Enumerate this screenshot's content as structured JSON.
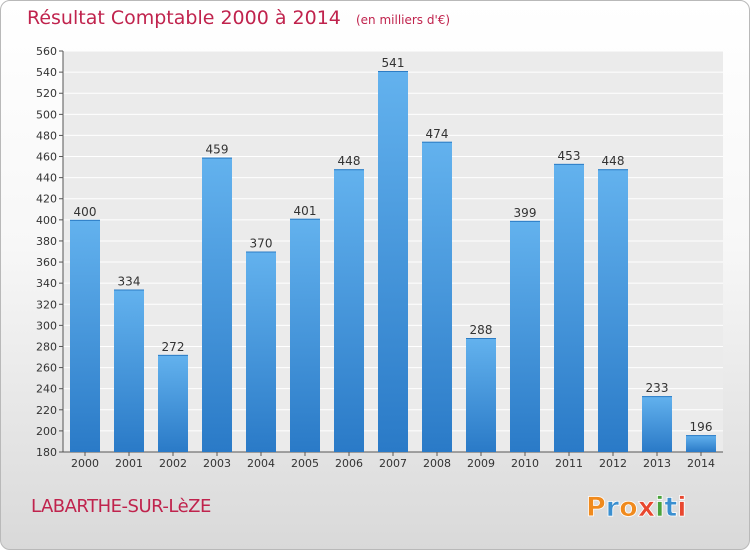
{
  "header": {
    "title": "Résultat Comptable 2000 à 2014",
    "subtitle": "(en milliers d'€)"
  },
  "footer": {
    "commune": "LABARTHE-SUR-LèZE",
    "logo_text": "Proxiti"
  },
  "colors": {
    "title": "#c0234d",
    "bar_top": "#63b2ee",
    "bar_bottom": "#2a7ac7",
    "plot_background": "#ebebeb",
    "grid": "#ffffff",
    "logo_letters": [
      "#f08a1d",
      "#3a8fd0",
      "#f08a1d",
      "#e8472f",
      "#4aa33c",
      "#3a8fd0",
      "#e8472f"
    ]
  },
  "chart_data": {
    "type": "bar",
    "categories": [
      "2000",
      "2001",
      "2002",
      "2003",
      "2004",
      "2005",
      "2006",
      "2007",
      "2008",
      "2009",
      "2010",
      "2011",
      "2012",
      "2013",
      "2014"
    ],
    "values": [
      400,
      334,
      272,
      459,
      370,
      401,
      448,
      541,
      474,
      288,
      399,
      453,
      448,
      233,
      196
    ],
    "data_labels": [
      "400",
      "334",
      "272",
      "459",
      "370",
      "401",
      "448",
      "541",
      "474",
      "288",
      "399",
      "453",
      "448",
      "233",
      "196"
    ],
    "ylim": [
      180,
      560
    ],
    "yticks": [
      "180",
      "200",
      "220",
      "240",
      "260",
      "280",
      "300",
      "320",
      "340",
      "360",
      "380",
      "400",
      "420",
      "440",
      "460",
      "480",
      "500",
      "520",
      "540",
      "560"
    ],
    "grid": true,
    "legend": "none"
  }
}
